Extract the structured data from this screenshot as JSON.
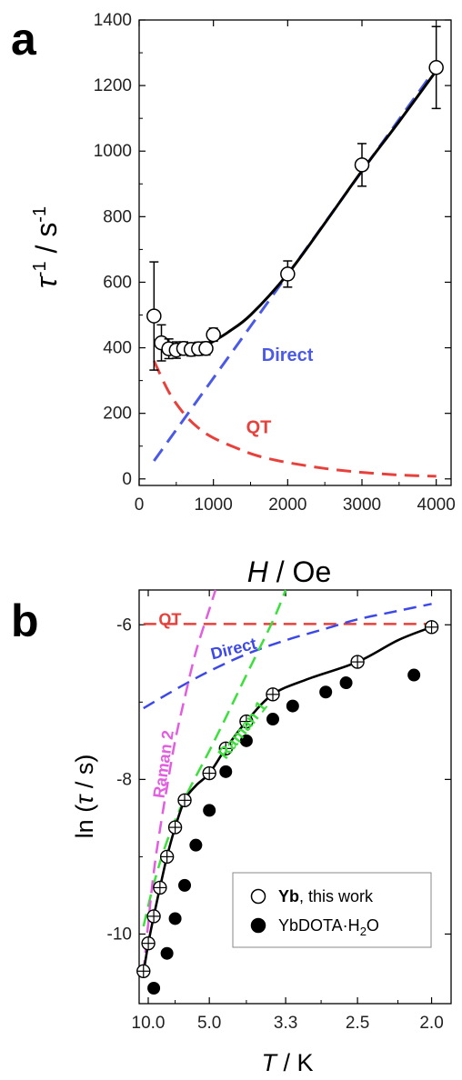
{
  "panel_labels": [
    "a",
    "b"
  ],
  "chart_data": [
    {
      "type": "scatter",
      "panel": "a",
      "xlim": [
        0,
        4200
      ],
      "ylim": [
        -20,
        1400
      ],
      "xticks": [
        0,
        1000,
        2000,
        3000,
        4000
      ],
      "yticks": [
        0,
        200,
        400,
        600,
        800,
        1000,
        1200,
        1400
      ],
      "xlabel": {
        "italic": "H",
        "rest": " / Oe"
      },
      "ylabel": {
        "italic": "τ",
        "sup1": "-1",
        "mid": " / s",
        "sup2": "-1"
      },
      "points": [
        {
          "x": 200,
          "y": 497,
          "err": 165
        },
        {
          "x": 300,
          "y": 415,
          "err": 55
        },
        {
          "x": 400,
          "y": 397,
          "err": 30
        },
        {
          "x": 500,
          "y": 393,
          "err": 25
        },
        {
          "x": 600,
          "y": 398,
          "err": 20
        },
        {
          "x": 700,
          "y": 395,
          "err": 20
        },
        {
          "x": 800,
          "y": 397,
          "err": 20
        },
        {
          "x": 900,
          "y": 398,
          "err": 20
        },
        {
          "x": 1000,
          "y": 440,
          "err": 20
        },
        {
          "x": 2000,
          "y": 625,
          "err": 40
        },
        {
          "x": 3000,
          "y": 958,
          "err": 65
        },
        {
          "x": 4000,
          "y": 1255,
          "err": 125
        }
      ],
      "fit": {
        "x": [
          250,
          400,
          600,
          800,
          900,
          1000,
          1200,
          1500,
          2000,
          2500,
          3000,
          3500,
          4000
        ],
        "y": [
          415,
          395,
          393,
          400,
          408,
          420,
          448,
          500,
          625,
          780,
          940,
          1090,
          1245
        ]
      },
      "components": [
        {
          "name": "Direct",
          "color": "#4b5ae6",
          "x": [
            200,
            4000
          ],
          "y": [
            55,
            1255
          ]
        },
        {
          "name": "QT",
          "color": "#e8413c",
          "x": [
            200,
            400,
            600,
            800,
            1000,
            1300,
            1600,
            2000,
            2500,
            3000,
            3500,
            4000
          ],
          "y": [
            360,
            265,
            200,
            155,
            125,
            95,
            70,
            50,
            32,
            20,
            12,
            8
          ]
        }
      ]
    },
    {
      "type": "scatter",
      "panel": "b",
      "x_scale": "reciprocal",
      "xlim": [
        9.5,
        1.9
      ],
      "ylim": [
        -10.9,
        -5.55
      ],
      "xticks": [
        "10.0",
        "5.0",
        "3.3",
        "2.5",
        "2.0"
      ],
      "yticks": [
        -10,
        -8,
        -6
      ],
      "xlabel": {
        "italic": "T",
        "rest": " / K"
      },
      "ylabel": {
        "pre": "ln (",
        "italic": "τ",
        "post": " / s)"
      },
      "series": [
        {
          "name": "Yb",
          "marker": "open",
          "points": [
            {
              "T": 9.0,
              "y": -10.48
            },
            {
              "T": 8.5,
              "y": -10.12
            },
            {
              "T": 8.0,
              "y": -9.77
            },
            {
              "T": 7.5,
              "y": -9.4
            },
            {
              "T": 7.0,
              "y": -9.0
            },
            {
              "T": 6.5,
              "y": -8.62
            },
            {
              "T": 6.0,
              "y": -8.27
            },
            {
              "T": 5.0,
              "y": -7.92
            },
            {
              "T": 4.5,
              "y": -7.6
            },
            {
              "T": 4.0,
              "y": -7.25
            },
            {
              "T": 3.5,
              "y": -6.9
            },
            {
              "T": 2.5,
              "y": -6.48
            },
            {
              "T": 2.0,
              "y": -6.03
            }
          ]
        },
        {
          "name": "YbDOTA·H2O",
          "marker": "filled",
          "points": [
            {
              "T": 8.0,
              "y": -10.7
            },
            {
              "T": 7.0,
              "y": -10.25
            },
            {
              "T": 6.5,
              "y": -9.8
            },
            {
              "T": 6.0,
              "y": -9.37
            },
            {
              "T": 5.5,
              "y": -8.85
            },
            {
              "T": 5.0,
              "y": -8.4
            },
            {
              "T": 4.5,
              "y": -7.9
            },
            {
              "T": 4.0,
              "y": -7.5
            },
            {
              "T": 3.5,
              "y": -7.22
            },
            {
              "T": 3.2,
              "y": -7.05
            },
            {
              "T": 2.8,
              "y": -6.87
            },
            {
              "T": 2.6,
              "y": -6.75
            },
            {
              "T": 2.1,
              "y": -6.65
            }
          ]
        }
      ],
      "fit": {
        "T": [
          9.0,
          8.5,
          8.0,
          7.5,
          7.0,
          6.5,
          6.0,
          5.5,
          5.0,
          4.5,
          4.0,
          3.5,
          3.0,
          2.5,
          2.2,
          2.0
        ],
        "y": [
          -10.5,
          -10.12,
          -9.77,
          -9.4,
          -9.0,
          -8.62,
          -8.27,
          -8.08,
          -7.92,
          -7.6,
          -7.25,
          -6.9,
          -6.7,
          -6.48,
          -6.2,
          -6.03
        ]
      },
      "components": [
        {
          "name": "QT",
          "color": "#e8413c",
          "T": [
            9.0,
            2.0
          ],
          "y": [
            -5.99,
            -5.99
          ]
        },
        {
          "name": "Direct",
          "color": "#3d49e6",
          "T": [
            9.0,
            8.0,
            7.0,
            6.0,
            5.0,
            4.0,
            3.3,
            2.8,
            2.5,
            2.2,
            2.0
          ],
          "y": [
            -7.08,
            -7.0,
            -6.9,
            -6.77,
            -6.6,
            -6.38,
            -6.2,
            -6.05,
            -5.93,
            -5.82,
            -5.73
          ]
        },
        {
          "name": "Raman 1",
          "color": "#3be03b",
          "T": [
            9.0,
            8.0,
            7.0,
            6.0,
            5.0,
            4.5,
            4.0,
            3.5,
            3.3
          ],
          "y": [
            -9.9,
            -9.35,
            -8.8,
            -8.25,
            -7.63,
            -7.2,
            -6.65,
            -5.95,
            -5.55
          ]
        },
        {
          "name": "Raman 2",
          "color": "#e25de0",
          "T": [
            9.0,
            8.5,
            8.0,
            7.5,
            7.0,
            6.5,
            6.0,
            5.5,
            5.0,
            4.8
          ],
          "y": [
            -10.5,
            -9.85,
            -9.2,
            -8.65,
            -8.1,
            -7.5,
            -6.95,
            -6.35,
            -5.8,
            -5.55
          ]
        }
      ],
      "legend": {
        "position": "lower-right",
        "entries": [
          {
            "marker": "open",
            "bold": "Yb",
            "rest": ", this work"
          },
          {
            "marker": "filled",
            "bold": "",
            "rest": "YbDOTA·H",
            "sub": "2",
            "tail": "O"
          }
        ]
      }
    }
  ]
}
